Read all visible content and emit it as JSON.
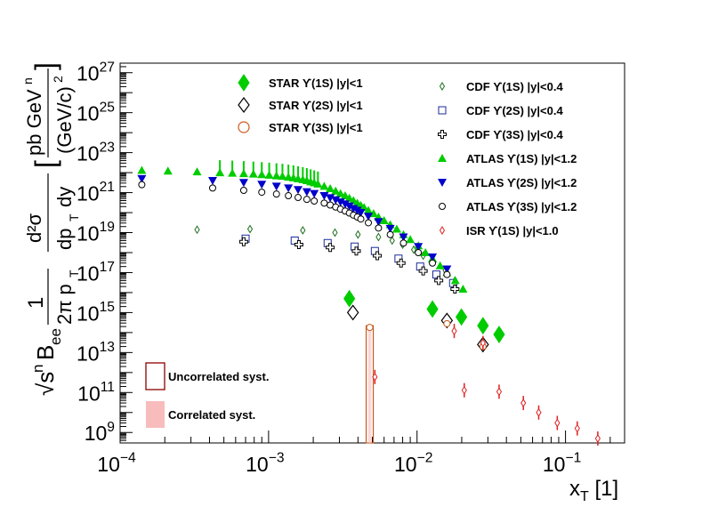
{
  "chart_data": {
    "type": "scatter",
    "xlabel": "x_T [1]",
    "ylabel_parts": {
      "prefix": "√s",
      "prefix_sup": "n",
      "b": "B",
      "b_sub": "ee",
      "frac1_num": "1",
      "frac1_den": "2π p",
      "frac1_den_sub": "T",
      "frac2_num": "d²σ",
      "frac2_den": "dp",
      "frac2_den_sub": "T",
      "frac2_den_tail": "dy",
      "units_num": "pb GeV",
      "units_num_sup": "n",
      "units_den": "(GeV/c)",
      "units_den_sup": "2"
    },
    "x_scale": "log",
    "y_scale": "log",
    "xlim": [
      0.0001,
      0.25
    ],
    "ylim": [
      300000000.0,
      3e+27
    ],
    "x_tick_labels": [
      {
        "value": 0.0001,
        "base": "10",
        "exp": "−4"
      },
      {
        "value": 0.001,
        "base": "10",
        "exp": "−3"
      },
      {
        "value": 0.01,
        "base": "10",
        "exp": "−2"
      },
      {
        "value": 0.1,
        "base": "10",
        "exp": "−1"
      }
    ],
    "y_tick_labels": [
      {
        "value": 1000000000.0,
        "base": "10",
        "exp": "9"
      },
      {
        "value": 100000000000.0,
        "base": "10",
        "exp": "11"
      },
      {
        "value": 10000000000000.0,
        "base": "10",
        "exp": "13"
      },
      {
        "value": 1000000000000000.0,
        "base": "10",
        "exp": "15"
      },
      {
        "value": 1e+17,
        "base": "10",
        "exp": "17"
      },
      {
        "value": 1e+19,
        "base": "10",
        "exp": "19"
      },
      {
        "value": 1e+21,
        "base": "10",
        "exp": "21"
      },
      {
        "value": 1e+23,
        "base": "10",
        "exp": "23"
      },
      {
        "value": 1e+25,
        "base": "10",
        "exp": "25"
      },
      {
        "value": 1e+27,
        "base": "10",
        "exp": "27"
      }
    ],
    "grid": false,
    "legend_left": [
      {
        "name": "STAR ϒ(1S) |y|<1",
        "marker": "diamond-filled",
        "color": "#00cc00"
      },
      {
        "name": "STAR ϒ(2S) |y|<1",
        "marker": "diamond-open",
        "color": "#000000"
      },
      {
        "name": "STAR ϒ(3S) |y|<1",
        "marker": "circle-open",
        "color": "#c85a1e"
      }
    ],
    "legend_right": [
      {
        "name": "CDF ϒ(1S) |y|<0.4",
        "marker": "diamond-open-small",
        "color": "#207020"
      },
      {
        "name": "CDF ϒ(2S) |y|<0.4",
        "marker": "square-open",
        "color": "#1a2a9a"
      },
      {
        "name": "CDF ϒ(3S) |y|<0.4",
        "marker": "cross-open",
        "color": "#000000"
      },
      {
        "name": "ATLAS ϒ(1S) |y|<1.2",
        "marker": "triangle-up",
        "color": "#00cc00"
      },
      {
        "name": "ATLAS ϒ(2S) |y|<1.2",
        "marker": "triangle-down",
        "color": "#0000cc"
      },
      {
        "name": "ATLAS ϒ(3S) |y|<1.2",
        "marker": "circle-open",
        "color": "#000000"
      },
      {
        "name": "ISR ϒ(1S) |y|<1.0",
        "marker": "diamond-open-small",
        "color": "#dd2222"
      }
    ],
    "syst_legend": [
      {
        "name": "Uncorrelated syst.",
        "style": "box-open",
        "color": "#8b0000"
      },
      {
        "name": "Correlated syst.",
        "style": "box-filled",
        "color": "#f8bcbc"
      }
    ],
    "series": [
      {
        "name": "STAR ϒ(1S) |y|<1",
        "marker": "diamond-filled",
        "color": "#00cc00",
        "x": [
          0.0035,
          0.0127,
          0.0199,
          0.0278,
          0.0357
        ],
        "y": [
          5000000000000000.0,
          1500000000000000.0,
          600000000000000.0,
          220000000000000.0,
          80000000000000.0
        ]
      },
      {
        "name": "STAR ϒ(2S) |y|<1",
        "marker": "diamond-open",
        "color": "#000000",
        "x": [
          0.0037,
          0.0159,
          0.0278
        ],
        "y": [
          1000000000000000.0,
          400000000000000.0,
          25000000000000.0
        ]
      },
      {
        "name": "STAR ϒ(3S) |y|<1",
        "marker": "circle-open",
        "color": "#c85a1e",
        "x": [
          0.0048,
          0.0159,
          0.0278
        ],
        "y": [
          180000000000000.0,
          280000000000000.0,
          20000000000000.0
        ]
      },
      {
        "name": "CDF ϒ(1S) |y|<0.4",
        "marker": "diamond-open-small",
        "color": "#207020",
        "x": [
          0.00033,
          0.00075,
          0.0017,
          0.0028,
          0.004,
          0.0055,
          0.0068,
          0.008,
          0.0095,
          0.011,
          0.013,
          0.0155,
          0.018
        ],
        "y": [
          1.4e+19,
          1.5e+19,
          1.3e+19,
          1e+19,
          8e+18,
          6e+18,
          4e+18,
          2.5e+18,
          1.4e+18,
          7e+17,
          3.5e+17,
          1.3e+17,
          4e+16
        ]
      },
      {
        "name": "CDF ϒ(2S) |y|<0.4",
        "marker": "square-open",
        "color": "#1a2a9a",
        "x": [
          0.0007,
          0.0015,
          0.0025,
          0.0038,
          0.0052,
          0.0075,
          0.0105,
          0.0135,
          0.0175
        ],
        "y": [
          5e+18,
          4e+18,
          3e+18,
          2e+18,
          1.2e+18,
          5e+17,
          2e+17,
          8e+16,
          3e+16
        ]
      },
      {
        "name": "CDF ϒ(3S) |y|<0.4",
        "marker": "cross-open",
        "color": "#000000",
        "x": [
          0.00068,
          0.0016,
          0.0026,
          0.0039,
          0.0054,
          0.0078,
          0.011,
          0.014,
          0.018
        ],
        "y": [
          3.5e+18,
          2.5e+18,
          1.8e+18,
          1.2e+18,
          7e+17,
          3e+17,
          1.2e+17,
          4e+16,
          1.5e+16
        ]
      },
      {
        "name": "ATLAS ϒ(1S) |y|<1.2",
        "marker": "triangle-up",
        "color": "#00cc00",
        "x": [
          0.00014,
          0.00021,
          0.00033,
          0.00047,
          0.00057,
          0.00068,
          0.00079,
          0.0009,
          0.00101,
          0.00113,
          0.00124,
          0.00136,
          0.00147,
          0.00158,
          0.0017,
          0.00181,
          0.00192,
          0.00203,
          0.00215,
          0.00237,
          0.0026,
          0.00283,
          0.00305,
          0.00328,
          0.0035,
          0.00373,
          0.00396,
          0.00418,
          0.0044,
          0.0047,
          0.0051,
          0.0055,
          0.006,
          0.0066,
          0.0073,
          0.0081,
          0.009,
          0.0102,
          0.0114,
          0.0127,
          0.0143,
          0.0159,
          0.0181,
          0.0204
        ],
        "y": [
          1.3e+22,
          1.2e+22,
          1.1e+22,
          1e+22,
          9.5e+21,
          9e+21,
          8.5e+21,
          8e+21,
          7.5e+21,
          7e+21,
          6.6e+21,
          6e+21,
          5.5e+21,
          5e+21,
          4.5e+21,
          4e+21,
          3.5e+21,
          3.1e+21,
          2.7e+21,
          2.1e+21,
          1.6e+21,
          1.2e+21,
          9e+20,
          7e+20,
          5.3e+20,
          4e+20,
          3e+20,
          2.3e+20,
          1.8e+20,
          1.3e+20,
          9e+19,
          6e+19,
          4e+19,
          2.5e+19,
          1.5e+19,
          8e+18,
          4.5e+18,
          2.2e+18,
          1e+18,
          5e+17,
          2.2e+17,
          1e+17,
          4e+16,
          1.5e+16
        ]
      },
      {
        "name": "ATLAS ϒ(2S) |y|<1.2",
        "marker": "triangle-down",
        "color": "#0000cc",
        "x": [
          0.00014,
          0.00042,
          0.00068,
          0.0009,
          0.00113,
          0.00136,
          0.00158,
          0.00181,
          0.00203,
          0.00237,
          0.0026,
          0.00283,
          0.00305,
          0.00328,
          0.0035,
          0.00373,
          0.00396,
          0.00418,
          0.0047,
          0.0055,
          0.0066,
          0.0081,
          0.0102,
          0.0127,
          0.0159
        ],
        "y": [
          5e+21,
          4e+21,
          3.2e+21,
          2.6e+21,
          2.1e+21,
          1.7e+21,
          1.4e+21,
          1.1e+21,
          9e+20,
          7e+20,
          5.5e+20,
          4.3e+20,
          3.4e+20,
          2.7e+20,
          2.1e+20,
          1.6e+20,
          1.3e+20,
          1e+20,
          6.5e+19,
          3.5e+19,
          1.6e+19,
          6e+18,
          2e+18,
          6e+17,
          1.5e+17
        ]
      },
      {
        "name": "ATLAS ϒ(3S) |y|<1.2",
        "marker": "circle-open",
        "color": "#000000",
        "x": [
          0.00014,
          0.00042,
          0.00068,
          0.0009,
          0.00113,
          0.00136,
          0.00158,
          0.00181,
          0.00203,
          0.00237,
          0.0026,
          0.00283,
          0.00305,
          0.00328,
          0.0035,
          0.00373,
          0.00396,
          0.00418,
          0.0047,
          0.0055,
          0.0066,
          0.0081,
          0.0102,
          0.0127,
          0.0159
        ],
        "y": [
          2.5e+21,
          1.7e+21,
          1.3e+21,
          1.05e+21,
          8.5e+20,
          7e+20,
          5.7e+20,
          4.6e+20,
          3.8e+20,
          3e+20,
          2.4e+20,
          1.9e+20,
          1.5e+20,
          1.2e+20,
          9.5e+19,
          7.5e+19,
          6e+19,
          4.8e+19,
          3.1e+19,
          1.7e+19,
          8e+18,
          3e+18,
          1e+18,
          3e+17,
          8e+16
        ]
      },
      {
        "name": "ISR ϒ(1S) |y|<1.0",
        "marker": "diamond-open-small",
        "color": "#dd2222",
        "x": [
          0.0052,
          0.0178,
          0.0208,
          0.0278,
          0.0357,
          0.052,
          0.066,
          0.088,
          0.12,
          0.165
        ],
        "y": [
          600000000000.0,
          120000000000000.0,
          130000000000.0,
          30000000000000.0,
          110000000000.0,
          30000000000.0,
          10000000000.0,
          3000000000.0,
          1600000000.0,
          500000000.0
        ]
      }
    ]
  }
}
